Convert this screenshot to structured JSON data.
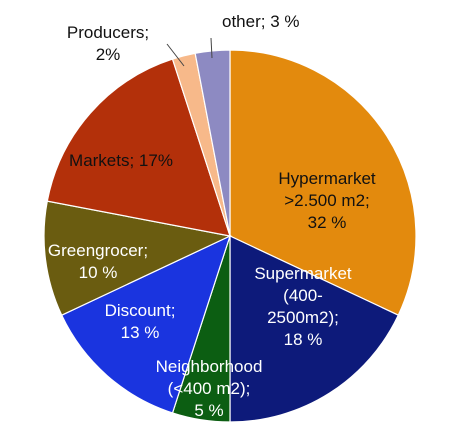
{
  "chart_data": {
    "type": "pie",
    "title": "",
    "start": "top",
    "direction": "clockwise",
    "slices": [
      {
        "name": "Hypermarket",
        "value": 32,
        "color": "#e38a0d",
        "label_color": "#111111",
        "label_lines": [
          "Hypermarket",
          ">2.500 m2;",
          "32 %"
        ]
      },
      {
        "name": "Supermarket",
        "value": 18,
        "color": "#0d1a7a",
        "label_color": "#ffffff",
        "label_lines": [
          "Supermarket",
          "(400-",
          "2500m2);",
          "18 %"
        ]
      },
      {
        "name": "Neighborhood",
        "value": 5,
        "color": "#0c5e12",
        "label_color": "#ffffff",
        "label_lines": [
          "Neighborhood",
          "(<400 m2);",
          "5 %"
        ]
      },
      {
        "name": "Discount",
        "value": 13,
        "color": "#1a34df",
        "label_color": "#ffffff",
        "label_lines": [
          "Discount;",
          "13 %"
        ]
      },
      {
        "name": "Greengrocer",
        "value": 10,
        "color": "#6a5c10",
        "label_color": "#ffffff",
        "label_lines": [
          "Greengrocer;",
          "10 %"
        ]
      },
      {
        "name": "Markets",
        "value": 17,
        "color": "#b3300a",
        "label_color": "#111111",
        "label_lines": [
          "Markets; 17%"
        ]
      },
      {
        "name": "Producers",
        "value": 2,
        "color": "#f7b98a",
        "label_color": "#111111",
        "label_lines": [
          "Producers;",
          "2%"
        ]
      },
      {
        "name": "other",
        "value": 3,
        "color": "#8d8ac2",
        "label_color": "#111111",
        "label_lines": [
          "other; 3 %"
        ]
      }
    ]
  }
}
